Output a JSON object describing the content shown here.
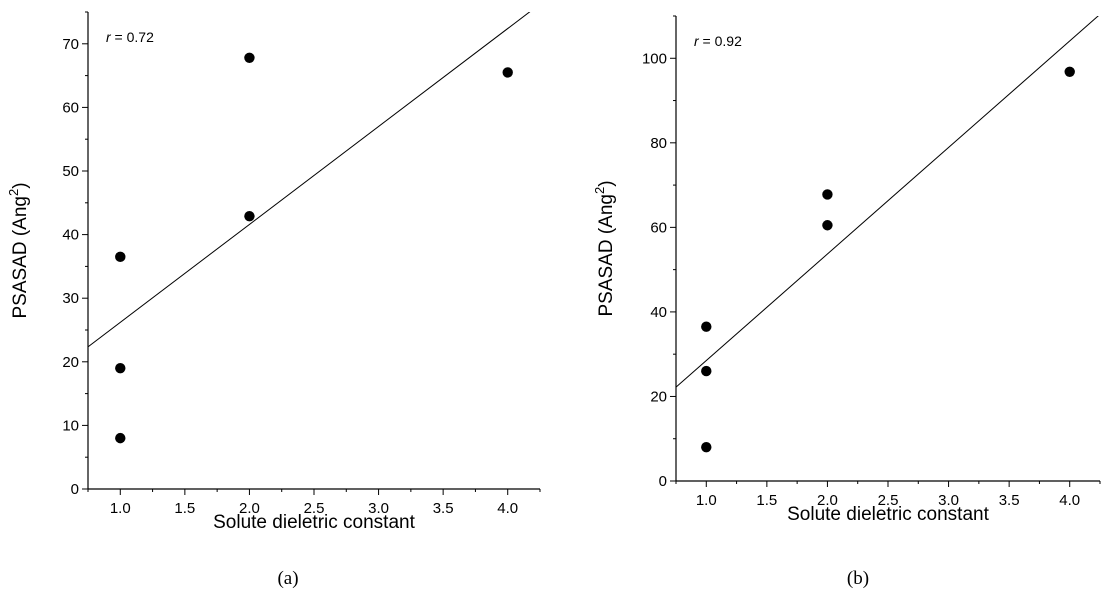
{
  "chart_data": [
    {
      "type": "scatter",
      "panel_label": "(a)",
      "annotation": {
        "variable": "r",
        "text": " = 0.72"
      },
      "xlabel": "Solute dieletric constant",
      "ylabel": {
        "base": "PSASAD (Ang",
        "superscript": "2",
        "close": ")"
      },
      "xlim": [
        0.75,
        4.25
      ],
      "ylim": [
        0,
        75
      ],
      "x_ticks": [
        1.0,
        1.5,
        2.0,
        2.5,
        3.0,
        3.5,
        4.0
      ],
      "x_tick_labels": [
        "1.0",
        "1.5",
        "2.0",
        "2.5",
        "3.0",
        "3.5",
        "4.0"
      ],
      "y_ticks": [
        0,
        10,
        20,
        30,
        40,
        50,
        60,
        70
      ],
      "y_tick_labels": [
        "0",
        "10",
        "20",
        "30",
        "40",
        "50",
        "60",
        "70"
      ],
      "points": [
        {
          "x": 1.0,
          "y": 36.5
        },
        {
          "x": 1.0,
          "y": 19.0
        },
        {
          "x": 1.0,
          "y": 8.0
        },
        {
          "x": 2.0,
          "y": 67.8
        },
        {
          "x": 2.0,
          "y": 42.9
        },
        {
          "x": 4.0,
          "y": 65.5
        }
      ],
      "fit_line": {
        "slope": 15.4,
        "intercept": 10.8
      }
    },
    {
      "type": "scatter",
      "panel_label": "(b)",
      "annotation": {
        "variable": "r",
        "text": " = 0.92"
      },
      "xlabel": "Solute dieletric constant",
      "ylabel": {
        "base": "PSASAD (Ang",
        "superscript": "2",
        "close": ")"
      },
      "xlim": [
        0.75,
        4.25
      ],
      "ylim": [
        0,
        110
      ],
      "x_ticks": [
        1.0,
        1.5,
        2.0,
        2.5,
        3.0,
        3.5,
        4.0
      ],
      "x_tick_labels": [
        "1.0",
        "1.5",
        "2.0",
        "2.5",
        "3.0",
        "3.5",
        "4.0"
      ],
      "y_ticks": [
        0,
        20,
        40,
        60,
        80,
        100
      ],
      "y_tick_labels": [
        "0",
        "20",
        "40",
        "60",
        "80",
        "100"
      ],
      "points": [
        {
          "x": 1.0,
          "y": 36.5
        },
        {
          "x": 1.0,
          "y": 26.0
        },
        {
          "x": 1.0,
          "y": 8.0
        },
        {
          "x": 2.0,
          "y": 67.8
        },
        {
          "x": 2.0,
          "y": 60.5
        },
        {
          "x": 4.0,
          "y": 96.8
        }
      ],
      "fit_line": {
        "slope": 25.2,
        "intercept": 3.3
      }
    }
  ]
}
